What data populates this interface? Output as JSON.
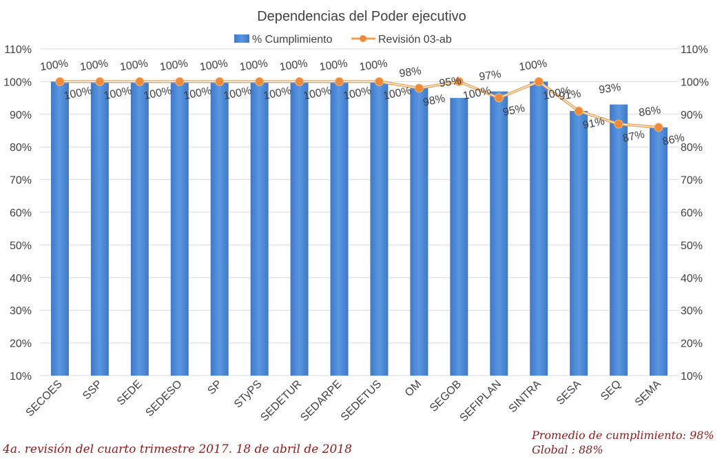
{
  "chart_data": {
    "type": "bar",
    "title": "Dependencias  del Poder ejecutivo",
    "categories": [
      "SECOES",
      "SSP",
      "SEDE",
      "SEDESO",
      "SP",
      "STyPS",
      "SEDETUR",
      "SEDARPE",
      "SEDETUS",
      "OM",
      "SEGOB",
      "SEFIPLAN",
      "SINTRA",
      "SESA",
      "SEQ",
      "SEMA"
    ],
    "series": [
      {
        "name": "% Cumplimiento",
        "type": "bar",
        "color": "#4a86d4",
        "values": [
          100,
          100,
          100,
          100,
          100,
          100,
          100,
          100,
          100,
          98,
          95,
          97,
          100,
          91,
          93,
          86
        ],
        "labels": [
          "100%",
          "100%",
          "100%",
          "100%",
          "100%",
          "100%",
          "100%",
          "100%",
          "100%",
          "98%",
          "95%",
          "97%",
          "100%",
          "91%",
          "93%",
          "86%"
        ]
      },
      {
        "name": "Revisión  03-ab",
        "type": "line",
        "color": "#f0a050",
        "values": [
          100,
          100,
          100,
          100,
          100,
          100,
          100,
          100,
          100,
          98,
          100,
          95,
          100,
          91,
          87,
          86
        ],
        "labels": [
          "100%",
          "100%",
          "100%",
          "100%",
          "100%",
          "100%",
          "100%",
          "100%",
          "100%",
          "98%",
          "100%",
          "95%",
          "100%",
          "91%",
          "87%",
          "86%"
        ]
      }
    ],
    "ylim": [
      10,
      110
    ],
    "yticks": [
      "10%",
      "20%",
      "30%",
      "40%",
      "50%",
      "60%",
      "70%",
      "80%",
      "90%",
      "100%",
      "110%"
    ],
    "grid": true,
    "legend_position": "top"
  },
  "footer": {
    "left": "4a. revisión del cuarto trimestre 2017.      18 de abril de 2018",
    "right_line1": "Promedio de cumplimiento: 98%",
    "right_line2": "Global : 88%"
  }
}
